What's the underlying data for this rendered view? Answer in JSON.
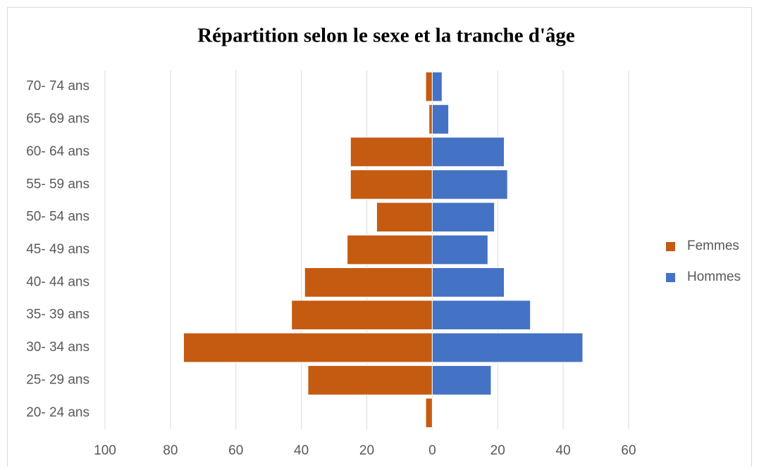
{
  "chart_data": {
    "type": "bar",
    "orientation": "horizontal",
    "title": "Répartition selon le sexe et la tranche d'âge",
    "categories": [
      "20- 24 ans",
      "25- 29 ans",
      "30- 34 ans",
      "35- 39 ans",
      "40- 44 ans",
      "45- 49 ans",
      "50- 54 ans",
      "55- 59 ans",
      "60- 64 ans",
      "65- 69 ans",
      "70- 74 ans"
    ],
    "series": [
      {
        "name": "Femmes",
        "color": "#c55a11",
        "values": [
          -2,
          -38,
          -76,
          -43,
          -39,
          -26,
          -17,
          -25,
          -25,
          -1,
          -2
        ]
      },
      {
        "name": "Hommes",
        "color": "#4472c4",
        "values": [
          0,
          18,
          46,
          30,
          22,
          17,
          19,
          23,
          22,
          5,
          3
        ]
      }
    ],
    "xlim": [
      -100,
      60
    ],
    "xticks": [
      {
        "value": -100,
        "label": "100"
      },
      {
        "value": -80,
        "label": "80"
      },
      {
        "value": -60,
        "label": "60"
      },
      {
        "value": -40,
        "label": "40"
      },
      {
        "value": -20,
        "label": "20"
      },
      0,
      20,
      40,
      60
    ],
    "grid": true,
    "legend": "right"
  }
}
